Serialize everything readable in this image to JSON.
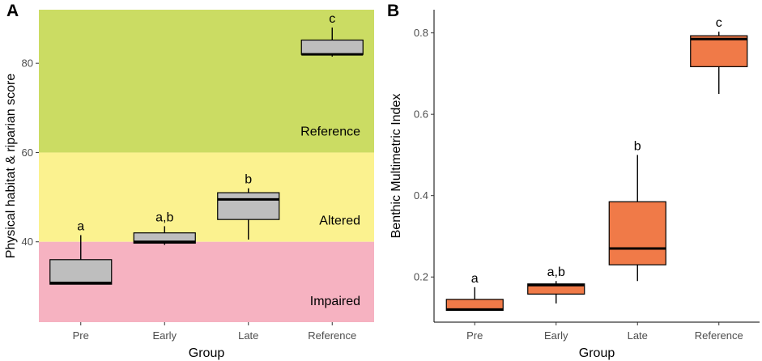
{
  "chart_data": [
    {
      "panel": "A",
      "type": "boxplot",
      "xlabel": "Group",
      "ylabel": "Physical habitat & riparian score",
      "ylim": [
        22,
        92
      ],
      "yticks": [
        40,
        60,
        80
      ],
      "categories": [
        "Pre",
        "Early",
        "Late",
        "Reference"
      ],
      "zones": [
        {
          "label": "Reference",
          "from": 60,
          "to": 92,
          "color": "#cbdc63"
        },
        {
          "label": "Altered",
          "from": 40,
          "to": 60,
          "color": "#fbf28f"
        },
        {
          "label": "Impaired",
          "from": 22,
          "to": 40,
          "color": "#f6b2c1"
        }
      ],
      "boxes": [
        {
          "group": "Pre",
          "whisker_low": 30.5,
          "q1": 30.5,
          "median": 30.8,
          "q3": 36,
          "whisker_high": 41.5,
          "sig": "a"
        },
        {
          "group": "Early",
          "whisker_low": 39.3,
          "q1": 39.7,
          "median": 40,
          "q3": 42,
          "whisker_high": 43.5,
          "sig": "a,b"
        },
        {
          "group": "Late",
          "whisker_low": 40.5,
          "q1": 45,
          "median": 49.5,
          "q3": 51,
          "whisker_high": 52,
          "sig": "b"
        },
        {
          "group": "Reference",
          "whisker_low": 81.5,
          "q1": 82,
          "median": 82,
          "q3": 85.2,
          "whisker_high": 88,
          "sig": "c"
        }
      ],
      "box_color": "#bebebe"
    },
    {
      "panel": "B",
      "type": "boxplot",
      "xlabel": "Group",
      "ylabel": "Benthic Multimetric Index",
      "ylim": [
        0.089,
        0.857
      ],
      "yticks": [
        0.2,
        0.4,
        0.6,
        0.8
      ],
      "categories": [
        "Pre",
        "Early",
        "Late",
        "Reference"
      ],
      "boxes": [
        {
          "group": "Pre",
          "whisker_low": 0.118,
          "q1": 0.118,
          "median": 0.12,
          "q3": 0.145,
          "whisker_high": 0.175,
          "sig": "a"
        },
        {
          "group": "Early",
          "whisker_low": 0.135,
          "q1": 0.158,
          "median": 0.18,
          "q3": 0.183,
          "whisker_high": 0.19,
          "sig": "a,b"
        },
        {
          "group": "Late",
          "whisker_low": 0.19,
          "q1": 0.23,
          "median": 0.27,
          "q3": 0.385,
          "whisker_high": 0.5,
          "sig": "b"
        },
        {
          "group": "Reference",
          "whisker_low": 0.65,
          "q1": 0.717,
          "median": 0.785,
          "q3": 0.793,
          "whisker_high": 0.803,
          "sig": "c"
        }
      ],
      "box_color": "#f07a48"
    }
  ]
}
